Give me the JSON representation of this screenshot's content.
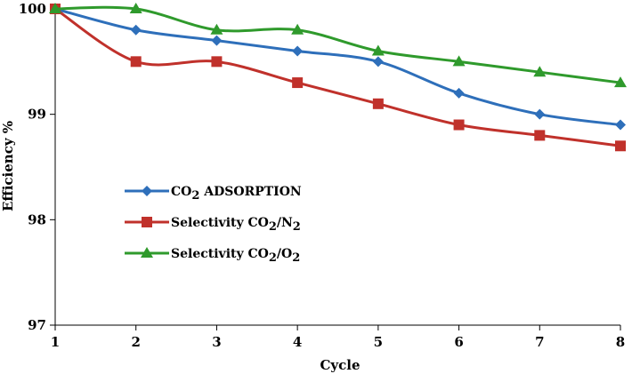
{
  "chart_data": {
    "type": "line",
    "title": "",
    "xlabel": "Cycle",
    "ylabel": "Efficiency %",
    "x": [
      1,
      2,
      3,
      4,
      5,
      6,
      7,
      8
    ],
    "x_tick_labels": [
      "1",
      "2",
      "3",
      "4",
      "5",
      "6",
      "7",
      "8"
    ],
    "xlim": [
      1,
      8
    ],
    "ylim": [
      97,
      100
    ],
    "y_ticks": [
      97,
      98,
      99,
      100
    ],
    "y_tick_labels": [
      "97",
      "98",
      "99",
      "100"
    ],
    "grid": false,
    "legend_position": "center-left",
    "series": [
      {
        "name": "CO2 ADSORPTION",
        "legend": {
          "a": "CO",
          "a_sub": "2",
          "b": " ADSORPTION",
          "b_sub": ""
        },
        "color": "#2e6fba",
        "marker": "diamond",
        "values": [
          100,
          99.8,
          99.7,
          99.6,
          99.5,
          99.2,
          99.0,
          98.9
        ]
      },
      {
        "name": "Selectivity CO2/N2",
        "legend": {
          "a": "Selectivity CO",
          "a_sub": "2",
          "b": "/N",
          "b_sub": "2"
        },
        "color": "#c0312b",
        "marker": "square",
        "values": [
          100,
          99.5,
          99.5,
          99.3,
          99.1,
          98.9,
          98.8,
          98.7
        ]
      },
      {
        "name": "Selectivity CO2/O2",
        "legend": {
          "a": "Selectivity CO",
          "a_sub": "2",
          "b": "/O",
          "b_sub": "2"
        },
        "color": "#2f9a2c",
        "marker": "triangle",
        "values": [
          100,
          100,
          99.8,
          99.8,
          99.6,
          99.5,
          99.4,
          99.3
        ]
      }
    ]
  }
}
